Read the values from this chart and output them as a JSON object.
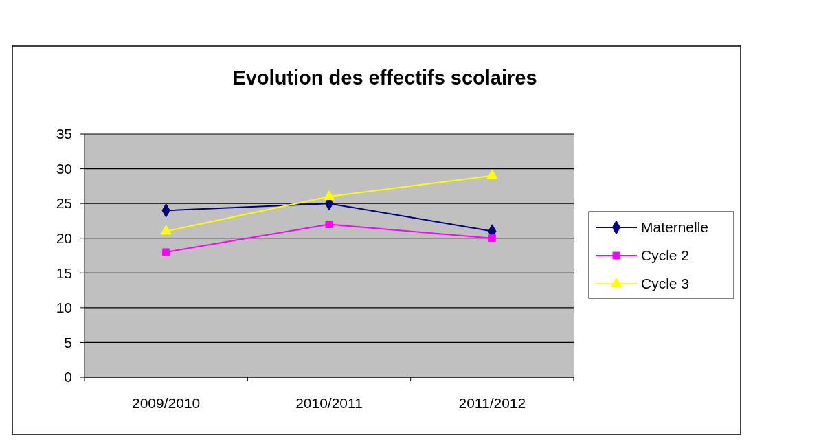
{
  "chart_data": {
    "type": "line",
    "title": "Evolution des effectifs scolaires",
    "categories": [
      "2009/2010",
      "2010/2011",
      "2011/2012"
    ],
    "series": [
      {
        "name": "Maternelle",
        "color": "#000080",
        "values": [
          24,
          25,
          21
        ],
        "marker": "diamond"
      },
      {
        "name": "Cycle 2",
        "color": "#ff00ff",
        "values": [
          18,
          22,
          20
        ],
        "marker": "square"
      },
      {
        "name": "Cycle 3",
        "color": "#ffff00",
        "values": [
          21,
          26,
          29
        ],
        "marker": "triangle"
      }
    ],
    "ylim": [
      0,
      35
    ],
    "yticks": [
      0,
      5,
      10,
      15,
      20,
      25,
      30,
      35
    ],
    "grid": "y",
    "legend": "right"
  }
}
